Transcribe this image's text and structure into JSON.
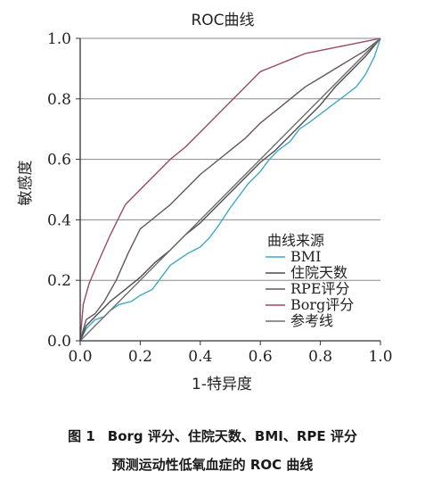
{
  "chart_data": {
    "type": "line",
    "title": "ROC曲线",
    "xlabel": "1-特异度",
    "ylabel": "敏感度",
    "xlim": [
      0,
      1
    ],
    "ylim": [
      0,
      1
    ],
    "xticks": [
      "0.0",
      "0.2",
      "0.4",
      "0.6",
      "0.8",
      "1.0"
    ],
    "yticks": [
      "0.0",
      "0.2",
      "0.4",
      "0.6",
      "0.8",
      "1.0"
    ],
    "grid": "horizontal",
    "legend_title": "曲线来源",
    "legend_position": "lower-right",
    "series": [
      {
        "name": "BMI",
        "color": "#3fa9c8",
        "x": [
          0,
          0.02,
          0.05,
          0.08,
          0.1,
          0.13,
          0.17,
          0.2,
          0.24,
          0.27,
          0.3,
          0.33,
          0.36,
          0.4,
          0.43,
          0.46,
          0.5,
          0.53,
          0.56,
          0.6,
          0.63,
          0.66,
          0.7,
          0.73,
          0.76,
          0.8,
          0.84,
          0.88,
          0.92,
          0.95,
          0.98,
          1.0
        ],
        "y": [
          0,
          0.04,
          0.07,
          0.08,
          0.1,
          0.12,
          0.13,
          0.15,
          0.17,
          0.21,
          0.25,
          0.27,
          0.29,
          0.31,
          0.34,
          0.38,
          0.44,
          0.48,
          0.52,
          0.56,
          0.6,
          0.63,
          0.66,
          0.7,
          0.72,
          0.75,
          0.78,
          0.81,
          0.84,
          0.88,
          0.94,
          1.0
        ]
      },
      {
        "name": "住院天数",
        "color": "#4d4d4d",
        "x": [
          0,
          0.02,
          0.05,
          0.08,
          0.1,
          0.15,
          0.2,
          0.25,
          0.3,
          0.35,
          0.4,
          0.45,
          0.5,
          0.55,
          0.6,
          0.65,
          0.7,
          0.75,
          0.8,
          0.85,
          0.9,
          0.95,
          1.0
        ],
        "y": [
          0,
          0.05,
          0.08,
          0.11,
          0.13,
          0.17,
          0.21,
          0.26,
          0.3,
          0.35,
          0.39,
          0.44,
          0.49,
          0.54,
          0.59,
          0.63,
          0.68,
          0.73,
          0.78,
          0.84,
          0.89,
          0.94,
          1.0
        ]
      },
      {
        "name": "RPE评分",
        "color": "#66555f",
        "x": [
          0,
          0.02,
          0.05,
          0.08,
          0.12,
          0.16,
          0.2,
          0.25,
          0.3,
          0.35,
          0.4,
          0.45,
          0.5,
          0.55,
          0.6,
          0.65,
          0.7,
          0.75,
          0.8,
          0.85,
          0.9,
          0.95,
          1.0
        ],
        "y": [
          0,
          0.07,
          0.09,
          0.13,
          0.2,
          0.29,
          0.37,
          0.41,
          0.45,
          0.5,
          0.55,
          0.59,
          0.63,
          0.67,
          0.72,
          0.76,
          0.8,
          0.84,
          0.87,
          0.9,
          0.93,
          0.96,
          1.0
        ]
      },
      {
        "name": "Borg评分",
        "color": "#9b4a66",
        "x": [
          0,
          0.01,
          0.03,
          0.06,
          0.1,
          0.15,
          0.2,
          0.25,
          0.3,
          0.35,
          0.4,
          0.45,
          0.5,
          0.55,
          0.6,
          0.65,
          0.7,
          0.75,
          0.8,
          0.85,
          0.9,
          0.95,
          1.0
        ],
        "y": [
          0,
          0.12,
          0.19,
          0.26,
          0.35,
          0.45,
          0.5,
          0.55,
          0.6,
          0.64,
          0.69,
          0.74,
          0.79,
          0.84,
          0.89,
          0.91,
          0.93,
          0.95,
          0.96,
          0.97,
          0.98,
          0.99,
          1.0
        ]
      },
      {
        "name": "参考线",
        "color": "#6e6e6e",
        "x": [
          0,
          1.0
        ],
        "y": [
          0,
          1.0
        ]
      }
    ]
  },
  "caption": {
    "label": "图 1",
    "line1": "Borg 评分、住院天数、BMI、RPE 评分",
    "line2": "预测运动性低氧血症的 ROC 曲线"
  }
}
